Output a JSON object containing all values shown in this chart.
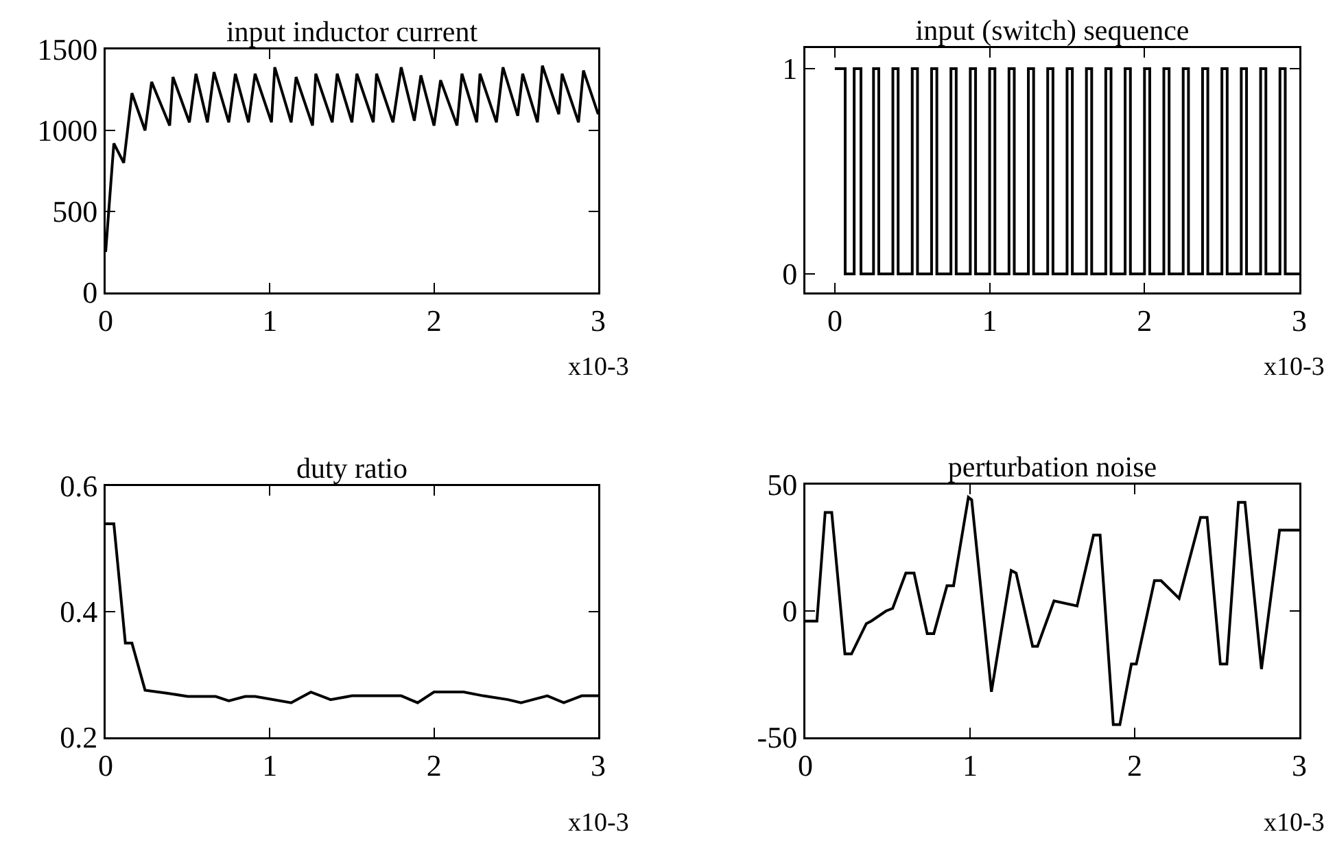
{
  "chart_data": [
    {
      "type": "line",
      "title": "input inductor current",
      "xlabel": "x10-3",
      "color": "#000000",
      "x": [
        0,
        0.05,
        0.11,
        0.16,
        0.24,
        0.28,
        0.39,
        0.41,
        0.51,
        0.55,
        0.62,
        0.66,
        0.75,
        0.79,
        0.87,
        0.91,
        1.01,
        1.03,
        1.13,
        1.16,
        1.26,
        1.28,
        1.38,
        1.41,
        1.5,
        1.53,
        1.63,
        1.65,
        1.75,
        1.8,
        1.88,
        1.92,
        2,
        2.04,
        2.14,
        2.17,
        2.26,
        2.28,
        2.38,
        2.42,
        2.51,
        2.54,
        2.63,
        2.66,
        2.76,
        2.78,
        2.88,
        2.91,
        3
      ],
      "values": [
        250,
        920,
        800,
        1230,
        1000,
        1300,
        1030,
        1330,
        1050,
        1350,
        1050,
        1360,
        1050,
        1350,
        1050,
        1350,
        1050,
        1390,
        1050,
        1330,
        1030,
        1350,
        1050,
        1350,
        1050,
        1350,
        1050,
        1350,
        1050,
        1390,
        1060,
        1340,
        1030,
        1310,
        1030,
        1350,
        1050,
        1350,
        1050,
        1390,
        1090,
        1350,
        1050,
        1400,
        1100,
        1350,
        1050,
        1370,
        1100
      ],
      "xlim": [
        0,
        3
      ],
      "xticks": [
        0,
        1,
        2,
        3
      ],
      "ylim": [
        0,
        1500
      ],
      "yticks": [
        0,
        500,
        1000,
        1500
      ],
      "grid": false,
      "line_style": "solid",
      "marker": "none"
    },
    {
      "type": "step",
      "title": "input (switch) sequence",
      "xlabel": "x10-3",
      "color": "#000000",
      "x": [
        0,
        0.067,
        0.125,
        0.169,
        0.25,
        0.284,
        0.375,
        0.409,
        0.5,
        0.534,
        0.625,
        0.659,
        0.75,
        0.784,
        0.875,
        0.909,
        1,
        1.034,
        1.125,
        1.159,
        1.25,
        1.284,
        1.375,
        1.409,
        1.5,
        1.534,
        1.625,
        1.659,
        1.75,
        1.784,
        1.875,
        1.909,
        2,
        2.034,
        2.125,
        2.159,
        2.25,
        2.284,
        2.375,
        2.409,
        2.5,
        2.534,
        2.625,
        2.659,
        2.75,
        2.784,
        2.875,
        2.909,
        3
      ],
      "values": [
        1,
        0,
        1,
        0,
        1,
        0,
        1,
        0,
        1,
        0,
        1,
        0,
        1,
        0,
        1,
        0,
        1,
        0,
        1,
        0,
        1,
        0,
        1,
        0,
        1,
        0,
        1,
        0,
        1,
        0,
        1,
        0,
        1,
        0,
        1,
        0,
        1,
        0,
        1,
        0,
        1,
        0,
        1,
        0,
        1,
        0,
        1,
        0,
        0
      ],
      "xlim": [
        -0.19,
        3
      ],
      "xticks": [
        0,
        1,
        2,
        3
      ],
      "ylim": [
        -0.09,
        1.1
      ],
      "yticks": [
        0,
        1
      ],
      "grid": false,
      "line_style": "solid",
      "marker": "none"
    },
    {
      "type": "line",
      "title": "duty ratio",
      "xlabel": "x10-3",
      "color": "#000000",
      "x": [
        0,
        0.05,
        0.12,
        0.16,
        0.24,
        0.38,
        0.5,
        0.67,
        0.75,
        0.85,
        0.91,
        1.13,
        1.25,
        1.37,
        1.5,
        1.8,
        1.9,
        2,
        2.18,
        2.3,
        2.45,
        2.53,
        2.69,
        2.79,
        2.9,
        3
      ],
      "values": [
        0.54,
        0.54,
        0.35,
        0.35,
        0.275,
        0.27,
        0.265,
        0.265,
        0.258,
        0.265,
        0.265,
        0.255,
        0.272,
        0.26,
        0.266,
        0.266,
        0.255,
        0.272,
        0.272,
        0.266,
        0.26,
        0.255,
        0.266,
        0.255,
        0.266,
        0.266
      ],
      "xlim": [
        0,
        3
      ],
      "xticks": [
        0,
        1,
        2,
        3
      ],
      "ylim": [
        0.2,
        0.6
      ],
      "yticks": [
        0.2,
        0.4,
        0.6
      ],
      "grid": false,
      "line_style": "solid",
      "marker": "none"
    },
    {
      "type": "line",
      "title": "perturbation noise",
      "xlabel": "x10-3",
      "color": "#000000",
      "x": [
        0,
        0.07,
        0.12,
        0.16,
        0.24,
        0.28,
        0.37,
        0.4,
        0.49,
        0.53,
        0.61,
        0.66,
        0.74,
        0.78,
        0.86,
        0.9,
        0.99,
        1.01,
        1.13,
        1.25,
        1.28,
        1.38,
        1.41,
        1.51,
        1.65,
        1.75,
        1.79,
        1.87,
        1.91,
        1.98,
        2.01,
        2.12,
        2.16,
        2.27,
        2.4,
        2.44,
        2.52,
        2.56,
        2.63,
        2.67,
        2.77,
        2.88,
        3
      ],
      "values": [
        -4,
        -4,
        39,
        39,
        -17,
        -17,
        -5,
        -4,
        0,
        1,
        15,
        15,
        -9,
        -9,
        10,
        10,
        45,
        44,
        -32,
        16,
        15,
        -14,
        -14,
        4,
        2,
        30,
        30,
        -45,
        -45,
        -21,
        -21,
        12,
        12,
        5,
        37,
        37,
        -21,
        -21,
        43,
        43,
        -23,
        32,
        32
      ],
      "xlim": [
        0,
        3
      ],
      "xticks": [
        0,
        1,
        2,
        3
      ],
      "ylim": [
        -50,
        50
      ],
      "yticks": [
        -50,
        0,
        50
      ],
      "grid": false,
      "line_style": "solid",
      "marker": "none"
    }
  ]
}
